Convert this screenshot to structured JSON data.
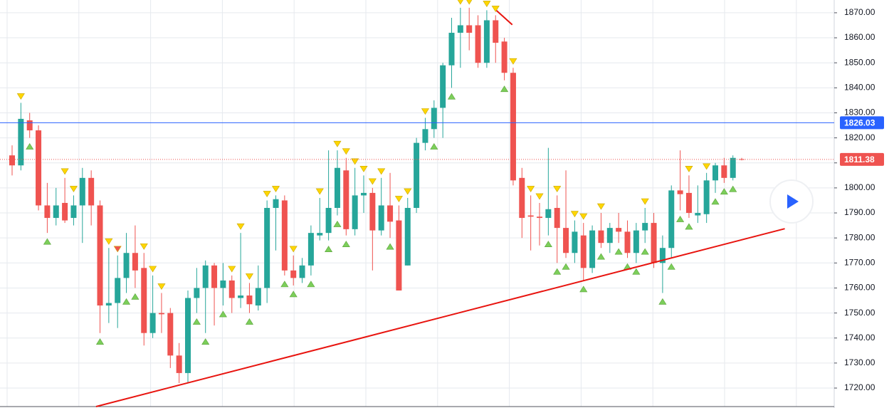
{
  "chart_data": {
    "type": "candlestick",
    "up_color": "#26a69a",
    "down_color": "#ef5350",
    "open": [
      1813,
      1809,
      1827,
      1823,
      1793,
      1788,
      1794,
      1788,
      1793,
      1804,
      1793,
      1753,
      1754,
      1764,
      1774,
      1768,
      1742,
      1750,
      1750,
      1733,
      1726,
      1756,
      1760,
      1769,
      1760,
      1763,
      1756,
      1757,
      1753,
      1760,
      1792,
      1795,
      1767,
      1764,
      1769,
      1781,
      1782,
      1792,
      1807,
      1783.5,
      1797,
      1798,
      1783,
      1793,
      1787,
      1769,
      1792,
      1818,
      1823.5,
      1832,
      1849,
      1862,
      1865,
      1865,
      1850,
      1867,
      1858.5,
      1846,
      1804,
      1789,
      1788.5,
      1788,
      1792,
      1784,
      1774,
      1781,
      1768,
      1783,
      1778,
      1784,
      1782.5,
      1774,
      1783,
      1786,
      1770,
      1776,
      1799,
      1798,
      1789,
      1789.5,
      1803,
      1809,
      1804,
      1811.5
    ],
    "high": [
      1817,
      1834,
      1830,
      1825,
      1802,
      1800,
      1804,
      1797,
      1808,
      1807,
      1795,
      1776,
      1773,
      1782,
      1785,
      1774,
      1765,
      1758,
      1752,
      1738,
      1759,
      1768,
      1771,
      1770,
      1770,
      1765,
      1782,
      1762,
      1769,
      1795,
      1797,
      1797,
      1773,
      1772,
      1785,
      1796,
      1815,
      1815,
      1812,
      1808,
      1805,
      1800,
      1804,
      1806,
      1793,
      1796,
      1820,
      1828,
      1835,
      1850,
      1868,
      1872,
      1872,
      1869,
      1871,
      1869,
      1860,
      1848,
      1808,
      1797,
      1794,
      1816,
      1797,
      1807,
      1787,
      1786,
      1785,
      1790,
      1786,
      1790,
      1787,
      1786,
      1792,
      1790,
      1781,
      1801,
      1815,
      1805,
      1801,
      1806,
      1810,
      1812,
      1813,
      1812
    ],
    "low": [
      1805,
      1807,
      1820,
      1791,
      1782,
      1785,
      1786,
      1785,
      1778,
      1785,
      1742,
      1746,
      1744,
      1758,
      1760,
      1737,
      1740,
      1742,
      1728,
      1722,
      1722,
      1750,
      1742,
      1745,
      1753,
      1750,
      1752,
      1750,
      1751,
      1754,
      1775,
      1765,
      1761,
      1762,
      1765,
      1779,
      1779,
      1789,
      1781,
      1781,
      1790,
      1767,
      1781,
      1780,
      1759,
      1769,
      1790,
      1815,
      1820,
      1820,
      1840,
      1848,
      1855,
      1848,
      1848,
      1850,
      1843,
      1801,
      1780,
      1775,
      1777,
      1781,
      1770,
      1772,
      1770,
      1763,
      1766,
      1776,
      1774,
      1778,
      1772,
      1770,
      1778,
      1768,
      1758,
      1772,
      1791,
      1788,
      1786,
      1786,
      1798,
      1802,
      1803,
      1811
    ],
    "close": [
      1809,
      1827.6,
      1823,
      1793,
      1788,
      1793,
      1787,
      1793,
      1804,
      1793,
      1753,
      1754,
      1764,
      1774,
      1767,
      1742,
      1750,
      1749.5,
      1733,
      1726,
      1756,
      1760,
      1769,
      1760,
      1763,
      1756,
      1757,
      1753.5,
      1760,
      1792,
      1795.5,
      1767,
      1764,
      1769,
      1782,
      1782,
      1792,
      1808,
      1783.5,
      1797,
      1798,
      1783,
      1793,
      1786.5,
      1759,
      1792,
      1818,
      1823.5,
      1832,
      1849,
      1862,
      1865,
      1862,
      1850,
      1867,
      1858,
      1846,
      1803,
      1788,
      1788.5,
      1788,
      1791.5,
      1784,
      1774,
      1782.5,
      1768,
      1783,
      1778,
      1784,
      1782.5,
      1774,
      1783,
      1786,
      1770,
      1776,
      1799,
      1797.5,
      1790,
      1790,
      1803,
      1809,
      1804,
      1812,
      1811.38
    ],
    "sell_signals": [
      1,
      6,
      7,
      11,
      15,
      16,
      17,
      25,
      26,
      27,
      29,
      30,
      32,
      35,
      37,
      38,
      39,
      40,
      41,
      42,
      44,
      45,
      47,
      51,
      52,
      54,
      55,
      57,
      59,
      60,
      62,
      64,
      65,
      67,
      72,
      77,
      79
    ],
    "buy_signals": [
      2,
      4,
      10,
      13,
      14,
      21,
      22,
      24,
      27,
      31,
      32,
      34,
      36,
      37,
      38,
      43,
      48,
      50,
      56,
      61,
      62,
      63,
      65,
      67,
      69,
      70,
      71,
      72,
      74,
      75,
      76,
      77,
      80,
      81,
      82
    ],
    "red_signals": [
      12
    ],
    "trendlines": [
      {
        "color": "#e8140f",
        "x": [
          9.55,
          87.9
        ],
        "y": [
          1712.6,
          1783.7
        ]
      },
      {
        "color": "#e8140f",
        "x": [
          55.1,
          56.9
        ],
        "y": [
          1870.9,
          1865.2
        ]
      }
    ],
    "price_lines": [
      {
        "value": 1826.03,
        "color": "#2962ff"
      },
      {
        "value": 1811.38,
        "color": "#ef5350"
      }
    ],
    "ylim": [
      1712.6,
      1875.1
    ],
    "yticks": [
      {
        "value": 1720,
        "label": "1720.00"
      },
      {
        "value": 1730,
        "label": "1730.00"
      },
      {
        "value": 1740,
        "label": "1740.00"
      },
      {
        "value": 1750,
        "label": "1750.00"
      },
      {
        "value": 1760,
        "label": "1760.00"
      },
      {
        "value": 1770,
        "label": "1770.00"
      },
      {
        "value": 1780,
        "label": "1780.00"
      },
      {
        "value": 1790,
        "label": "1790.00"
      },
      {
        "value": 1800,
        "label": "1800.00"
      },
      {
        "value": 1810,
        "label": "1810.00"
      },
      {
        "value": 1820,
        "label": "1820.00"
      },
      {
        "value": 1830,
        "label": "1830.00"
      },
      {
        "value": 1840,
        "label": "1840.00"
      },
      {
        "value": 1850,
        "label": "1850.00"
      },
      {
        "value": 1860,
        "label": "1860.00"
      },
      {
        "value": 1870,
        "label": "1870.00"
      }
    ],
    "grid": true
  }
}
